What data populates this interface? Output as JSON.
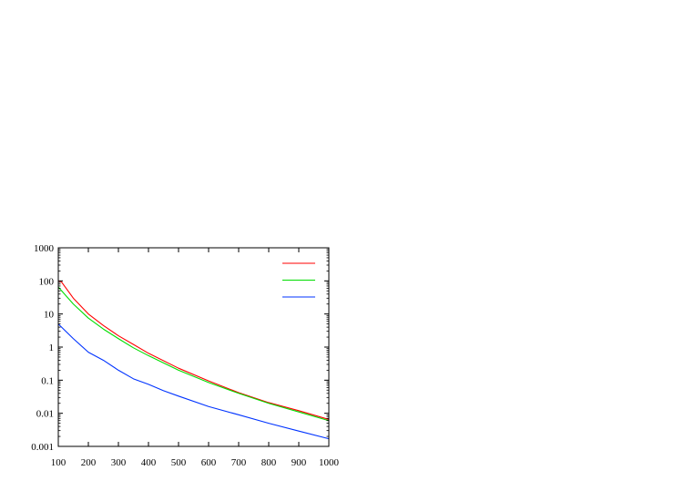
{
  "chart_data": {
    "type": "line",
    "title": "",
    "xlabel": "",
    "ylabel": "",
    "xlim": [
      100,
      1000
    ],
    "ylim": [
      0.001,
      1000
    ],
    "yscale": "log",
    "grid": false,
    "legend": "top-right",
    "x_ticks": [
      "100",
      "200",
      "300",
      "400",
      "500",
      "600",
      "700",
      "800",
      "900",
      "1000"
    ],
    "y_ticks": [
      "0.001",
      "0.01",
      "0.1",
      "1",
      "10",
      "100",
      "1000"
    ],
    "series": [
      {
        "color": "#ff0000",
        "x": [
          100,
          110,
          150,
          200,
          250,
          300,
          350,
          400,
          500,
          600,
          700,
          800,
          900,
          1000
        ],
        "y": [
          100,
          95,
          30,
          10,
          4.5,
          2.2,
          1.2,
          0.65,
          0.23,
          0.095,
          0.042,
          0.021,
          0.012,
          0.0065
        ]
      },
      {
        "color": "#00dd00",
        "x": [
          100,
          150,
          200,
          250,
          300,
          350,
          400,
          500,
          600,
          700,
          800,
          900,
          1000
        ],
        "y": [
          65,
          20,
          7.5,
          3.5,
          1.8,
          0.95,
          0.55,
          0.2,
          0.085,
          0.04,
          0.02,
          0.011,
          0.006
        ]
      },
      {
        "color": "#0033ff",
        "x": [
          100,
          150,
          200,
          250,
          300,
          350,
          400,
          450,
          500,
          600,
          700,
          800,
          900,
          1000
        ],
        "y": [
          5,
          1.8,
          0.7,
          0.4,
          0.2,
          0.11,
          0.075,
          0.048,
          0.033,
          0.016,
          0.009,
          0.005,
          0.0029,
          0.0017
        ]
      }
    ]
  }
}
